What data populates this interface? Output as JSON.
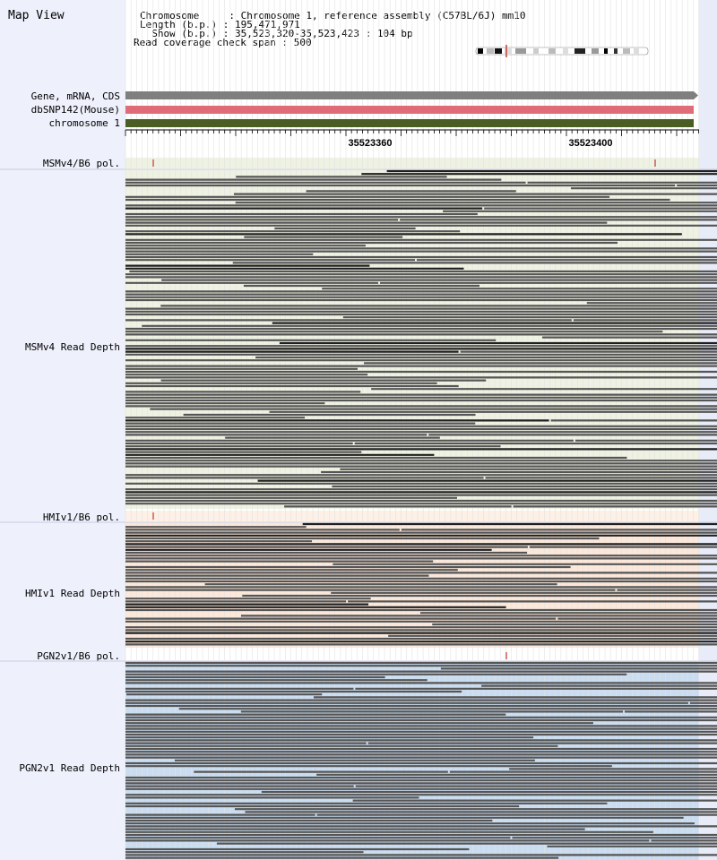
{
  "map_view": {
    "title": "Map View"
  },
  "header": {
    "lines": [
      "Chromosome     : Chromosome 1, reference assembly (C57BL/6J) mm10",
      "Length (b.p.) : 195,471,971",
      "  Show (b.p.) : 35,523,320-35,523,423 : 104 bp",
      "Read coverage check span : 500"
    ]
  },
  "tracks": {
    "gene": {
      "label": "Gene, mRNA, CDS",
      "color": "#7f7f7f"
    },
    "dbsnp": {
      "label": "dbSNP142(Mouse)",
      "color": "#e06c7a"
    },
    "chrom": {
      "label": "chromosome 1",
      "color": "#4a5e23"
    }
  },
  "ruler": {
    "ticks": [
      "35523360",
      "35523400"
    ]
  },
  "panels": {
    "msm_pol": {
      "label": "MSMv4/B6 pol."
    },
    "msm_depth": {
      "label": "MSMv4 Read Depth",
      "bg": "#eef2e2"
    },
    "hmi_pol": {
      "label": "HMIv1/B6 pol."
    },
    "hmi_depth": {
      "label": "HMIv1 Read Depth",
      "bg": "#fbe8da"
    },
    "pgn_pol": {
      "label": "PGN2v1/B6 pol."
    },
    "pgn_depth": {
      "label": "PGN2v1 Read Depth",
      "bg": "#c9dcf0"
    }
  },
  "colors": {
    "read": "#555555",
    "read_dark": "#1f1f1f",
    "variant": "#c0392b",
    "sidebar": "#eef0fb"
  }
}
